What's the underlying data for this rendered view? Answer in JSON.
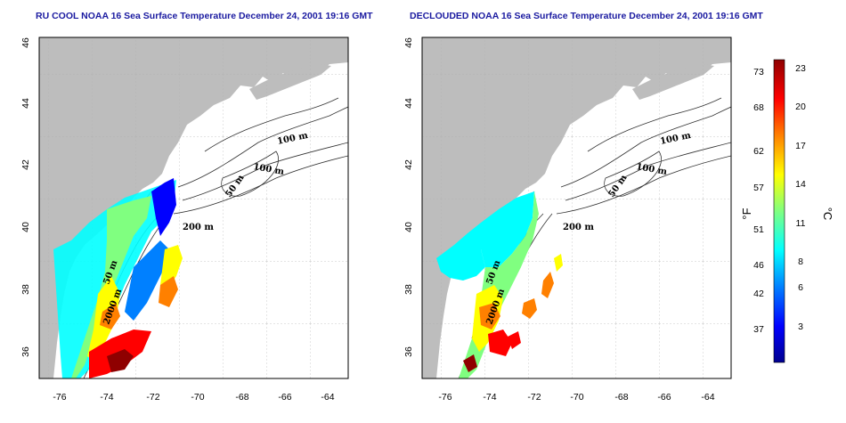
{
  "panels": [
    {
      "title": "RU COOL NOAA 16 Sea Surface Temperature December 24, 2001 19:16 GMT"
    },
    {
      "title": "DECLOUDED NOAA 16 Sea Surface Temperature December 24, 2001 19:16 GMT"
    }
  ],
  "map": {
    "lon_ticks": [
      "-76",
      "-74",
      "-72",
      "-70",
      "-68",
      "-66",
      "-64"
    ],
    "lat_ticks": [
      "36",
      "38",
      "40",
      "42",
      "44",
      "46"
    ],
    "contour_labels": [
      "100 m",
      "100 m",
      "50 m",
      "200 m",
      "50 m",
      "2000 m"
    ]
  },
  "colorbar": {
    "fahrenheit_ticks": [
      "73",
      "68",
      "62",
      "57",
      "51",
      "46",
      "42",
      "37"
    ],
    "celsius_ticks": [
      "23",
      "20",
      "17",
      "14",
      "11",
      "8",
      "6",
      "3"
    ],
    "fahrenheit_unit": "°F",
    "celsius_unit": "°C",
    "colors": [
      "#00008f",
      "#0000ff",
      "#0080ff",
      "#00ffff",
      "#80ff80",
      "#ffff00",
      "#ff8000",
      "#ff0000",
      "#8f0000"
    ]
  },
  "colors": {
    "land": "#bdbdbd",
    "water": "#ffffff",
    "title": "#1a1aa0"
  }
}
